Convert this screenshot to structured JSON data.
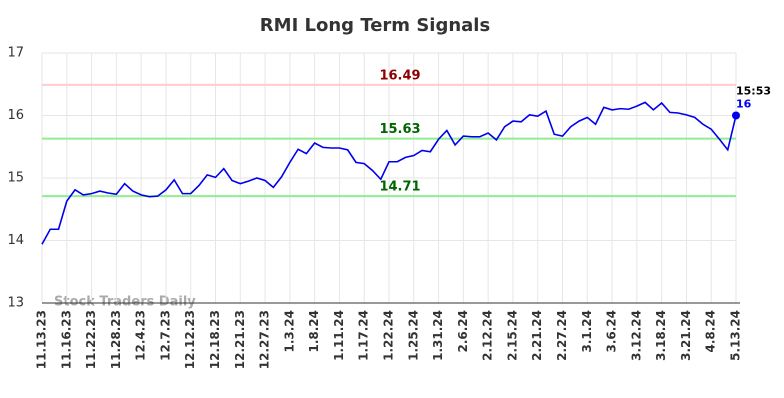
{
  "chart_data": {
    "type": "line",
    "title": "RMI Long Term Signals",
    "watermark": "Stock Traders Daily",
    "categories": [
      "11.13.23",
      null,
      null,
      "11.16.23",
      null,
      null,
      "11.22.23",
      null,
      null,
      "11.28.23",
      null,
      null,
      "12.4.23",
      null,
      null,
      "12.7.23",
      null,
      null,
      "12.12.23",
      null,
      null,
      "12.18.23",
      null,
      null,
      "12.21.23",
      null,
      null,
      "12.27.23",
      null,
      null,
      "1.3.24",
      null,
      null,
      "1.8.24",
      null,
      null,
      "1.11.24",
      null,
      null,
      "1.17.24",
      null,
      null,
      "1.22.24",
      null,
      null,
      "1.25.24",
      null,
      null,
      "1.31.24",
      null,
      null,
      "2.6.24",
      null,
      null,
      "2.12.24",
      null,
      null,
      "2.15.24",
      null,
      null,
      "2.21.24",
      null,
      null,
      "2.27.24",
      null,
      null,
      "3.1.24",
      null,
      null,
      "3.6.24",
      null,
      null,
      "3.12.24",
      null,
      null,
      "3.18.24",
      null,
      null,
      "3.21.24",
      null,
      null,
      "4.8.24",
      null,
      null,
      "5.13.24"
    ],
    "series": [
      {
        "name": "RMI",
        "color": "#0000ee",
        "values": [
          13.94,
          14.18,
          14.18,
          14.63,
          14.81,
          14.73,
          14.75,
          14.79,
          14.76,
          14.74,
          14.91,
          14.79,
          14.73,
          14.7,
          14.71,
          14.81,
          14.97,
          14.75,
          14.75,
          14.88,
          15.05,
          15.01,
          15.15,
          14.96,
          14.91,
          14.95,
          15.0,
          14.96,
          14.85,
          15.02,
          15.25,
          15.46,
          15.39,
          15.56,
          15.49,
          15.48,
          15.48,
          15.45,
          15.25,
          15.23,
          15.12,
          14.98,
          15.26,
          15.26,
          15.33,
          15.36,
          15.44,
          15.42,
          15.62,
          15.76,
          15.53,
          15.67,
          15.66,
          15.66,
          15.72,
          15.61,
          15.82,
          15.91,
          15.9,
          16.01,
          15.99,
          16.07,
          15.7,
          15.67,
          15.82,
          15.91,
          15.97,
          15.86,
          16.13,
          16.09,
          16.11,
          16.1,
          16.15,
          16.21,
          16.09,
          16.2,
          16.05,
          16.04,
          16.01,
          15.97,
          15.86,
          15.78,
          15.62,
          15.45,
          16.0
        ]
      }
    ],
    "last_point_time": "15:53",
    "hlines": [
      {
        "value": 16.49,
        "color": "#ffcccc",
        "label_color": "#8b0000"
      },
      {
        "value": 15.63,
        "color": "#90ee90",
        "label_color": "#006400"
      },
      {
        "value": 14.71,
        "color": "#90ee90",
        "label_color": "#006400"
      }
    ],
    "ylim": [
      13,
      17
    ],
    "yticks": [
      13,
      14,
      15,
      16,
      17
    ],
    "grid": true
  }
}
